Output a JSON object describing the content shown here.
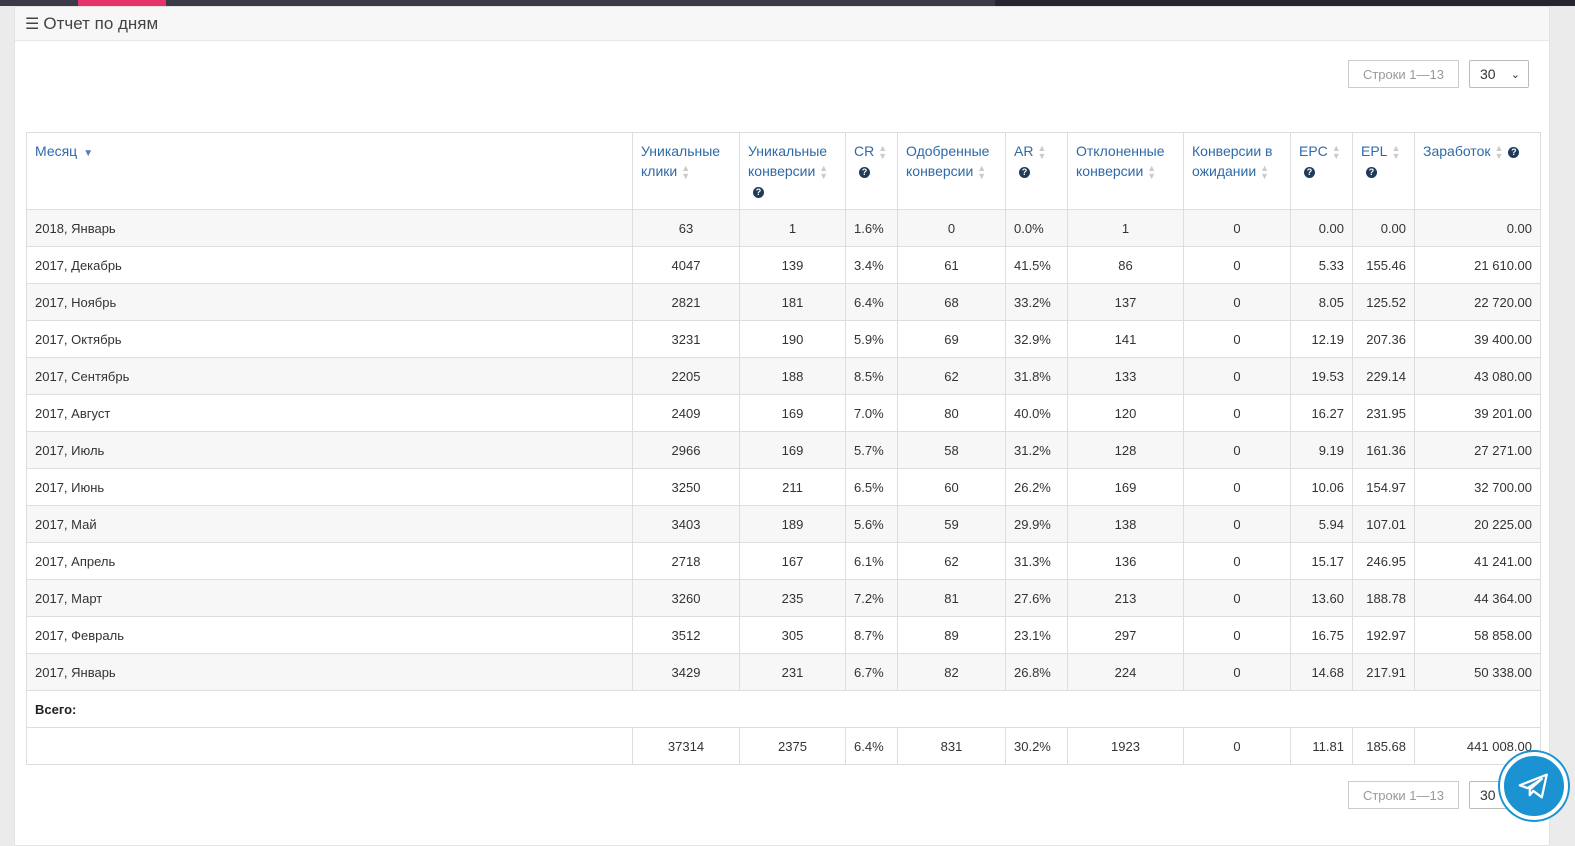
{
  "panel": {
    "title": "Отчет по дням"
  },
  "pager": {
    "rows_label": "Строки 1—13",
    "per_page": "30"
  },
  "columns": [
    {
      "label": "Месяц",
      "sort": "desc",
      "help": false
    },
    {
      "label": "Уникальные клики",
      "sort": "none",
      "help": false
    },
    {
      "label": "Уникальные конверсии",
      "sort": "none",
      "help": true
    },
    {
      "label": "CR",
      "sort": "none",
      "help": true
    },
    {
      "label": "Одобренные конверсии",
      "sort": "none",
      "help": false
    },
    {
      "label": "AR",
      "sort": "none",
      "help": true
    },
    {
      "label": "Отклоненные конверсии",
      "sort": "none",
      "help": false
    },
    {
      "label": "Конверсии в ожидании",
      "sort": "none",
      "help": false
    },
    {
      "label": "EPC",
      "sort": "none",
      "help": true
    },
    {
      "label": "EPL",
      "sort": "none",
      "help": true
    },
    {
      "label": "Заработок",
      "sort": "none",
      "help": true
    }
  ],
  "rows": [
    [
      "2018, Январь",
      "63",
      "1",
      "1.6%",
      "0",
      "0.0%",
      "1",
      "0",
      "0.00",
      "0.00",
      "0.00"
    ],
    [
      "2017, Декабрь",
      "4047",
      "139",
      "3.4%",
      "61",
      "41.5%",
      "86",
      "0",
      "5.33",
      "155.46",
      "21 610.00"
    ],
    [
      "2017, Ноябрь",
      "2821",
      "181",
      "6.4%",
      "68",
      "33.2%",
      "137",
      "0",
      "8.05",
      "125.52",
      "22 720.00"
    ],
    [
      "2017, Октябрь",
      "3231",
      "190",
      "5.9%",
      "69",
      "32.9%",
      "141",
      "0",
      "12.19",
      "207.36",
      "39 400.00"
    ],
    [
      "2017, Сентябрь",
      "2205",
      "188",
      "8.5%",
      "62",
      "31.8%",
      "133",
      "0",
      "19.53",
      "229.14",
      "43 080.00"
    ],
    [
      "2017, Август",
      "2409",
      "169",
      "7.0%",
      "80",
      "40.0%",
      "120",
      "0",
      "16.27",
      "231.95",
      "39 201.00"
    ],
    [
      "2017, Июль",
      "2966",
      "169",
      "5.7%",
      "58",
      "31.2%",
      "128",
      "0",
      "9.19",
      "161.36",
      "27 271.00"
    ],
    [
      "2017, Июнь",
      "3250",
      "211",
      "6.5%",
      "60",
      "26.2%",
      "169",
      "0",
      "10.06",
      "154.97",
      "32 700.00"
    ],
    [
      "2017, Май",
      "3403",
      "189",
      "5.6%",
      "59",
      "29.9%",
      "138",
      "0",
      "5.94",
      "107.01",
      "20 225.00"
    ],
    [
      "2017, Апрель",
      "2718",
      "167",
      "6.1%",
      "62",
      "31.3%",
      "136",
      "0",
      "15.17",
      "246.95",
      "41 241.00"
    ],
    [
      "2017, Март",
      "3260",
      "235",
      "7.2%",
      "81",
      "27.6%",
      "213",
      "0",
      "13.60",
      "188.78",
      "44 364.00"
    ],
    [
      "2017, Февраль",
      "3512",
      "305",
      "8.7%",
      "89",
      "23.1%",
      "297",
      "0",
      "16.75",
      "192.97",
      "58 858.00"
    ],
    [
      "2017, Январь",
      "3429",
      "231",
      "6.7%",
      "82",
      "26.8%",
      "224",
      "0",
      "14.68",
      "217.91",
      "50 338.00"
    ]
  ],
  "totals": {
    "label": "Всего:",
    "values": [
      "",
      "37314",
      "2375",
      "6.4%",
      "831",
      "30.2%",
      "1923",
      "0",
      "11.81",
      "185.68",
      "441 008.00"
    ]
  },
  "colors": {
    "link": "#2f6aa8",
    "accent": "#e6336a",
    "telegram": "#1b92d1"
  }
}
